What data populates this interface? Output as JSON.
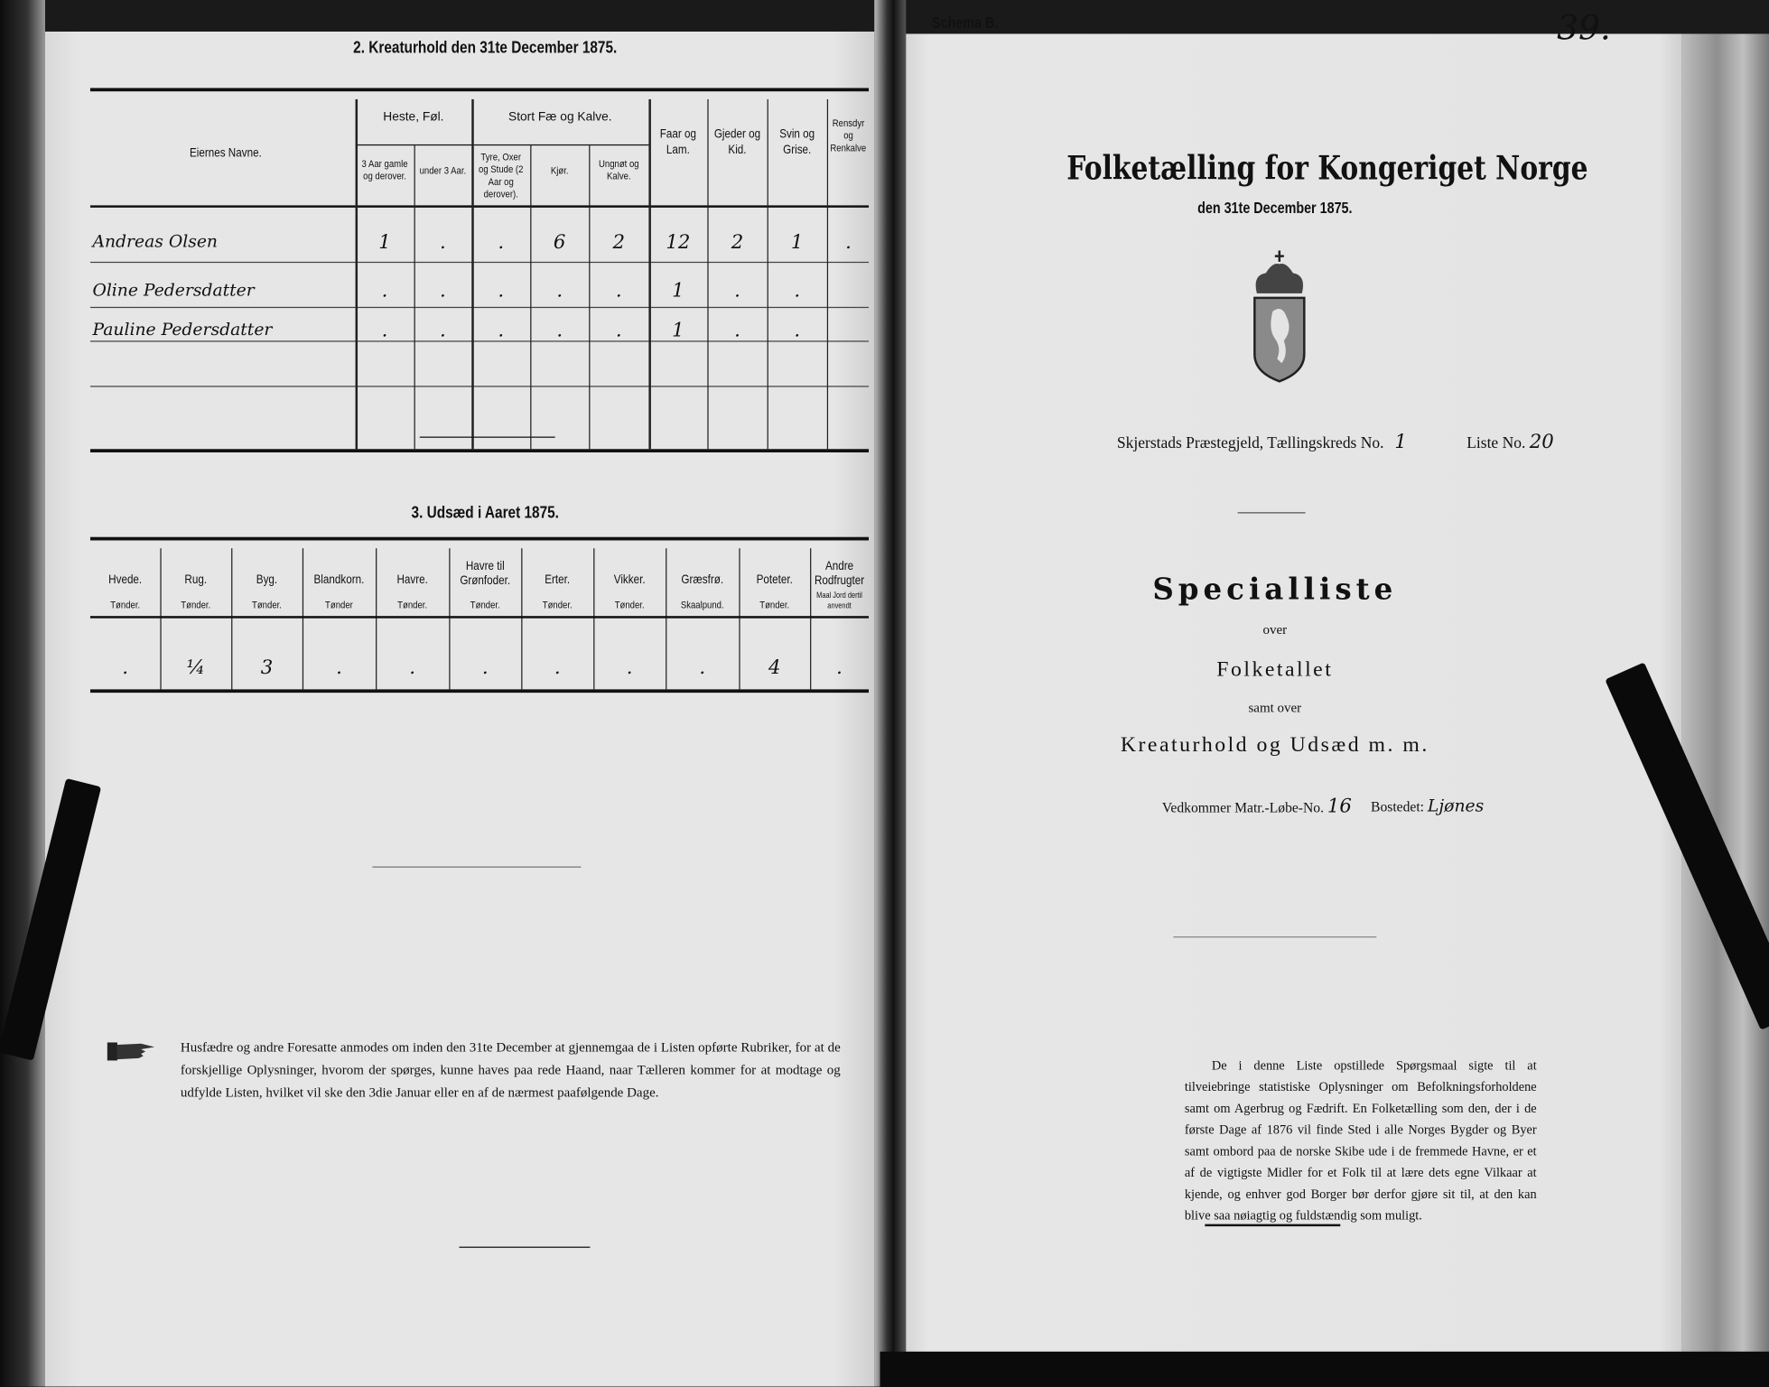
{
  "left_page": {
    "section2": {
      "title": "2.  Kreaturhold den 31te December 1875.",
      "owner_header": "Eiernes Navne.",
      "groups": {
        "horses": "Heste, Føl.",
        "cattle": "Stort Fæ og Kalve."
      },
      "columns": [
        "3 Aar gamle og derover.",
        "under 3 Aar.",
        "Tyre, Oxer og Stude (2 Aar og derover).",
        "Kjør.",
        "Ungnøt og Kalve.",
        "Faar og Lam.",
        "Gjeder og Kid.",
        "Svin og Grise.",
        "Rensdyr og Renkalve."
      ],
      "rows": [
        {
          "name": "Andreas Olsen",
          "values": [
            "1",
            ".",
            ".",
            "6",
            "2",
            "12",
            "2",
            "1",
            "."
          ]
        },
        {
          "name": "Oline Pedersdatter",
          "values": [
            ".",
            ".",
            ".",
            ".",
            ".",
            "1",
            ".",
            ".",
            ""
          ]
        },
        {
          "name": "Pauline Pedersdatter",
          "values": [
            ".",
            ".",
            ".",
            ".",
            ".",
            "1",
            ".",
            ".",
            ""
          ]
        }
      ]
    },
    "section3": {
      "title": "3.  Udsæd i Aaret 1875.",
      "columns": [
        {
          "crop": "Hvede.",
          "unit": "Tønder."
        },
        {
          "crop": "Rug.",
          "unit": "Tønder."
        },
        {
          "crop": "Byg.",
          "unit": "Tønder."
        },
        {
          "crop": "Blandkorn.",
          "unit": "Tønder"
        },
        {
          "crop": "Havre.",
          "unit": "Tønder."
        },
        {
          "crop": "Havre til Grønfoder.",
          "unit": "Tønder."
        },
        {
          "crop": "Erter.",
          "unit": "Tønder."
        },
        {
          "crop": "Vikker.",
          "unit": "Tønder."
        },
        {
          "crop": "Græsfrø.",
          "unit": "Skaalpund."
        },
        {
          "crop": "Poteter.",
          "unit": "Tønder."
        },
        {
          "crop": "Andre Rodfrugter.",
          "unit": "Maal Jord dertil anvendt"
        }
      ],
      "values": [
        ".",
        "¼",
        "3",
        ".",
        ".",
        ".",
        ".",
        ".",
        ".",
        "4",
        "."
      ]
    },
    "notice": "Husfædre og andre Foresatte anmodes om inden den 31te December at gjennemgaa de i Listen opførte Rubriker, for at de forskjellige Oplysninger, hvorom der spørges, kunne haves paa rede Haand, naar Tælleren kommer for at modtage og udfylde Listen, hvilket vil ske den 3die Januar eller en af de nærmest paafølgende Dage.",
    "notice_icon": "pointing-hand-icon"
  },
  "right_page": {
    "schema": "Schema B.",
    "page_number": "39.",
    "title": "Folketælling for Kongeriget Norge",
    "date": "den 31te December 1875.",
    "crest_icon": "norwegian-coat-of-arms-icon",
    "parish": "Skjerstads Præstegjeld,",
    "district_label": "Tællingskreds No.",
    "district_value": "1",
    "list_label": "Liste No.",
    "list_value": "20",
    "heading": "Specialliste",
    "over1": "over",
    "subject1": "Folketallet",
    "over2": "samt over",
    "subject2": "Kreaturhold og Udsæd m. m.",
    "matr_label": "Vedkommer Matr.-Løbe-No.",
    "matr_value": "16",
    "bosted_label": "Bostedet:",
    "bosted_value": "Ljønes",
    "explanation": "De i denne Liste opstillede Spørgsmaal sigte til at tilveiebringe statistiske Oplysninger om Befolkningsforholdene samt om Agerbrug og Fædrift. En Folketælling som den, der i de første Dage af 1876 vil finde Sted i alle Norges Bygder og Byer samt ombord paa de norske Skibe ude i de fremmede Havne, er et af de vigtigste Midler for et Folk til at lære dets egne Vilkaar at kjende, og enhver god Borger bør derfor gjøre sit til, at den kan blive saa nøiagtig og fuldstændig som muligt."
  }
}
